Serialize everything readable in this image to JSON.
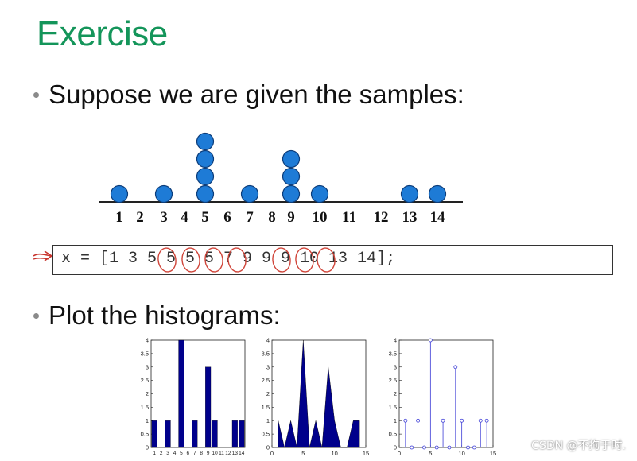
{
  "slide": {
    "title": "Exercise",
    "bullet1": "Suppose we are given the samples:",
    "bullet2": "Plot the histograms:",
    "code": "x = [1 3 5 5 5 5 7 9 9 9 10 13 14];",
    "watermark": "CSDN @不拘于时.",
    "accent_color": "#14955a",
    "dot_color": "#1e7bd6",
    "plot_color": "#00008b"
  },
  "dot_plot": {
    "axis_labels": [
      "1",
      "2",
      "3",
      "4",
      "5",
      "6",
      "7",
      "8",
      "9",
      "10",
      "11",
      "12",
      "13",
      "14"
    ],
    "counts": {
      "1": 1,
      "3": 1,
      "5": 4,
      "7": 1,
      "9": 3,
      "10": 1,
      "13": 1,
      "14": 1
    }
  },
  "chart_data": [
    {
      "type": "bar",
      "categories": [
        "1",
        "2",
        "3",
        "4",
        "5",
        "6",
        "7",
        "8",
        "9",
        "10",
        "11",
        "12",
        "13",
        "14"
      ],
      "values": [
        1,
        0,
        1,
        0,
        4,
        0,
        1,
        0,
        3,
        1,
        0,
        0,
        1,
        1
      ],
      "ylim": [
        0,
        4
      ],
      "yticks": [
        "0",
        "0.5",
        "1",
        "1.5",
        "2",
        "2.5",
        "3",
        "3.5",
        "4"
      ]
    },
    {
      "type": "area",
      "x": [
        1,
        2,
        3,
        4,
        5,
        6,
        7,
        8,
        9,
        10,
        11,
        12,
        13,
        14
      ],
      "values": [
        1,
        0,
        1,
        0,
        4,
        0,
        1,
        0,
        3,
        1,
        0,
        0,
        1,
        1
      ],
      "xlim": [
        0,
        15
      ],
      "ylim": [
        0,
        4
      ],
      "xticks": [
        "0",
        "5",
        "10",
        "15"
      ],
      "yticks": [
        "0",
        "0.5",
        "1",
        "1.5",
        "2",
        "2.5",
        "3",
        "3.5",
        "4"
      ]
    },
    {
      "type": "stem",
      "x": [
        1,
        2,
        3,
        4,
        5,
        6,
        7,
        8,
        9,
        10,
        11,
        12,
        13,
        14
      ],
      "values": [
        1,
        0,
        1,
        0,
        4,
        0,
        1,
        0,
        3,
        1,
        0,
        0,
        1,
        1
      ],
      "xlim": [
        0,
        15
      ],
      "ylim": [
        0,
        4
      ],
      "xticks": [
        "0",
        "5",
        "10",
        "15"
      ],
      "yticks": [
        "0",
        "0.5",
        "1",
        "1.5",
        "2",
        "2.5",
        "3",
        "3.5",
        "4"
      ]
    }
  ]
}
